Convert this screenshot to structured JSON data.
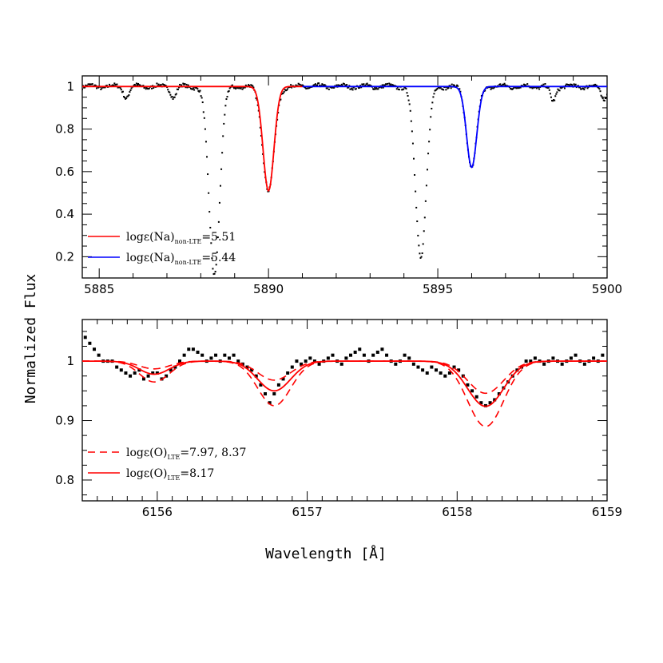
{
  "ylabel_shared": "Normalized Flux",
  "xlabel_shared": "Wavelength [Å]",
  "chart_data": [
    {
      "type": "line",
      "panel": "top",
      "xlim": [
        5884.5,
        5900.0
      ],
      "ylim": [
        0.1,
        1.05
      ],
      "x_ticks": [
        5885,
        5890,
        5895,
        5900
      ],
      "x_tick_labels": [
        "5885",
        "5890",
        "5895",
        "5900"
      ],
      "y_ticks": [
        0.2,
        0.4,
        0.6,
        0.8,
        1.0
      ],
      "y_tick_labels": [
        "0.2",
        "0.4",
        "0.6",
        "0.8",
        "1"
      ],
      "grid": false,
      "legend_position": "bottom-left",
      "observed": {
        "style": "dots",
        "color": "#000000",
        "continuum": 1.0,
        "scatter": 0.008,
        "lines": [
          {
            "center": 5888.4,
            "depth": 0.88,
            "sigma": 0.16
          },
          {
            "center": 5890.0,
            "depth": 0.49,
            "sigma": 0.17
          },
          {
            "center": 5894.5,
            "depth": 0.8,
            "sigma": 0.16
          },
          {
            "center": 5896.0,
            "depth": 0.38,
            "sigma": 0.15
          },
          {
            "center": 5885.8,
            "depth": 0.05,
            "sigma": 0.08
          },
          {
            "center": 5887.2,
            "depth": 0.05,
            "sigma": 0.08
          },
          {
            "center": 5898.4,
            "depth": 0.07,
            "sigma": 0.08
          },
          {
            "center": 5899.9,
            "depth": 0.06,
            "sigma": 0.08
          }
        ]
      },
      "series": [
        {
          "name": "logε(Na)non-LTE=5.51",
          "legend_main": "logε(Na)",
          "legend_sub": "non-LTE",
          "legend_tail": "=5.51",
          "color": "#ff0000",
          "dash": "solid",
          "x_range": [
            5884.5,
            5891.0
          ],
          "continuum": 1.0,
          "center": 5890.0,
          "depth": 0.49,
          "sigma": 0.16
        },
        {
          "name": "logε(Na)non-LTE=5.44",
          "legend_main": "logε(Na)",
          "legend_sub": "non-LTE",
          "legend_tail": "=5.44",
          "color": "#0000ff",
          "dash": "solid",
          "x_range": [
            5891.0,
            5900.0
          ],
          "continuum": 1.0,
          "center": 5896.0,
          "depth": 0.38,
          "sigma": 0.15
        }
      ]
    },
    {
      "type": "line",
      "panel": "bottom",
      "xlim": [
        6155.5,
        6159.0
      ],
      "ylim": [
        0.765,
        1.07
      ],
      "x_ticks": [
        6156,
        6157,
        6158,
        6159
      ],
      "x_tick_labels": [
        "6156",
        "6157",
        "6158",
        "6159"
      ],
      "y_ticks": [
        0.8,
        0.9,
        1.0
      ],
      "y_tick_labels": [
        "0.8",
        "0.9",
        "1"
      ],
      "grid": false,
      "legend_position": "bottom-left",
      "observed": {
        "style": "squares",
        "color": "#000000",
        "points": [
          [
            6155.52,
            1.04
          ],
          [
            6155.55,
            1.03
          ],
          [
            6155.58,
            1.02
          ],
          [
            6155.61,
            1.01
          ],
          [
            6155.64,
            1.0
          ],
          [
            6155.67,
            1.0
          ],
          [
            6155.7,
            1.0
          ],
          [
            6155.73,
            0.99
          ],
          [
            6155.76,
            0.985
          ],
          [
            6155.79,
            0.98
          ],
          [
            6155.82,
            0.975
          ],
          [
            6155.85,
            0.98
          ],
          [
            6155.88,
            0.985
          ],
          [
            6155.91,
            0.97
          ],
          [
            6155.94,
            0.975
          ],
          [
            6155.97,
            0.98
          ],
          [
            6156.0,
            0.98
          ],
          [
            6156.03,
            0.97
          ],
          [
            6156.06,
            0.975
          ],
          [
            6156.09,
            0.985
          ],
          [
            6156.12,
            0.99
          ],
          [
            6156.15,
            1.0
          ],
          [
            6156.18,
            1.01
          ],
          [
            6156.21,
            1.02
          ],
          [
            6156.24,
            1.02
          ],
          [
            6156.27,
            1.015
          ],
          [
            6156.3,
            1.01
          ],
          [
            6156.33,
            1.0
          ],
          [
            6156.36,
            1.005
          ],
          [
            6156.39,
            1.01
          ],
          [
            6156.42,
            1.0
          ],
          [
            6156.45,
            1.01
          ],
          [
            6156.48,
            1.005
          ],
          [
            6156.51,
            1.01
          ],
          [
            6156.54,
            1.0
          ],
          [
            6156.57,
            0.995
          ],
          [
            6156.6,
            0.99
          ],
          [
            6156.63,
            0.985
          ],
          [
            6156.66,
            0.975
          ],
          [
            6156.69,
            0.96
          ],
          [
            6156.72,
            0.945
          ],
          [
            6156.75,
            0.93
          ],
          [
            6156.78,
            0.945
          ],
          [
            6156.81,
            0.96
          ],
          [
            6156.84,
            0.97
          ],
          [
            6156.87,
            0.98
          ],
          [
            6156.9,
            0.99
          ],
          [
            6156.93,
            1.0
          ],
          [
            6156.96,
            0.995
          ],
          [
            6156.99,
            1.0
          ],
          [
            6157.02,
            1.005
          ],
          [
            6157.05,
            1.0
          ],
          [
            6157.08,
            0.995
          ],
          [
            6157.11,
            1.0
          ],
          [
            6157.14,
            1.005
          ],
          [
            6157.17,
            1.01
          ],
          [
            6157.2,
            1.0
          ],
          [
            6157.23,
            0.995
          ],
          [
            6157.26,
            1.005
          ],
          [
            6157.29,
            1.01
          ],
          [
            6157.32,
            1.015
          ],
          [
            6157.35,
            1.02
          ],
          [
            6157.38,
            1.01
          ],
          [
            6157.41,
            1.0
          ],
          [
            6157.44,
            1.01
          ],
          [
            6157.47,
            1.015
          ],
          [
            6157.5,
            1.02
          ],
          [
            6157.53,
            1.01
          ],
          [
            6157.56,
            1.0
          ],
          [
            6157.59,
            0.995
          ],
          [
            6157.62,
            1.0
          ],
          [
            6157.65,
            1.01
          ],
          [
            6157.68,
            1.005
          ],
          [
            6157.71,
            0.995
          ],
          [
            6157.74,
            0.99
          ],
          [
            6157.77,
            0.985
          ],
          [
            6157.8,
            0.98
          ],
          [
            6157.83,
            0.99
          ],
          [
            6157.86,
            0.985
          ],
          [
            6157.89,
            0.98
          ],
          [
            6157.92,
            0.975
          ],
          [
            6157.95,
            0.98
          ],
          [
            6157.98,
            0.99
          ],
          [
            6158.01,
            0.985
          ],
          [
            6158.04,
            0.975
          ],
          [
            6158.07,
            0.96
          ],
          [
            6158.1,
            0.95
          ],
          [
            6158.13,
            0.94
          ],
          [
            6158.16,
            0.93
          ],
          [
            6158.19,
            0.925
          ],
          [
            6158.22,
            0.93
          ],
          [
            6158.25,
            0.935
          ],
          [
            6158.28,
            0.945
          ],
          [
            6158.31,
            0.955
          ],
          [
            6158.34,
            0.965
          ],
          [
            6158.37,
            0.975
          ],
          [
            6158.4,
            0.985
          ],
          [
            6158.43,
            0.99
          ],
          [
            6158.46,
            1.0
          ],
          [
            6158.49,
            1.0
          ],
          [
            6158.52,
            1.005
          ],
          [
            6158.55,
            1.0
          ],
          [
            6158.58,
            0.995
          ],
          [
            6158.61,
            1.0
          ],
          [
            6158.64,
            1.005
          ],
          [
            6158.67,
            1.0
          ],
          [
            6158.7,
            0.995
          ],
          [
            6158.73,
            1.0
          ],
          [
            6158.76,
            1.005
          ],
          [
            6158.79,
            1.01
          ],
          [
            6158.82,
            1.0
          ],
          [
            6158.85,
            0.995
          ],
          [
            6158.88,
            1.0
          ],
          [
            6158.91,
            1.005
          ],
          [
            6158.94,
            1.0
          ],
          [
            6158.97,
            1.01
          ]
        ]
      },
      "series": [
        {
          "name": "logε(O)LTE=8.17",
          "legend_main": "logε(O)",
          "legend_sub": "LTE",
          "legend_tail": "=8.17",
          "color": "#ff0000",
          "dash": "solid",
          "continuum": 1.0,
          "lines": [
            {
              "center": 6155.98,
              "depth": 0.022,
              "sigma": 0.1
            },
            {
              "center": 6156.78,
              "depth": 0.05,
              "sigma": 0.11
            },
            {
              "center": 6158.19,
              "depth": 0.076,
              "sigma": 0.12
            }
          ]
        },
        {
          "name": "logε(O)LTE=7.97, 8.37",
          "legend_main": "logε(O)",
          "legend_sub": "LTE",
          "legend_tail": "=7.97, 8.37",
          "color": "#ff0000",
          "dash": "dashed",
          "continuum": 1.0,
          "lines": [
            {
              "center": 6155.98,
              "depth": 0.013,
              "sigma": 0.1
            },
            {
              "center": 6156.78,
              "depth": 0.032,
              "sigma": 0.11
            },
            {
              "center": 6158.19,
              "depth": 0.054,
              "sigma": 0.12
            }
          ]
        },
        {
          "name": "logε(O)LTE=7.97, 8.37",
          "legend_main": "logε(O)",
          "legend_sub": "LTE",
          "legend_tail": "=7.97, 8.37",
          "color": "#ff0000",
          "dash": "dashed",
          "legend_hidden": true,
          "continuum": 1.0,
          "lines": [
            {
              "center": 6155.98,
              "depth": 0.035,
              "sigma": 0.1
            },
            {
              "center": 6156.78,
              "depth": 0.075,
              "sigma": 0.11
            },
            {
              "center": 6158.19,
              "depth": 0.11,
              "sigma": 0.12
            }
          ]
        }
      ]
    }
  ]
}
